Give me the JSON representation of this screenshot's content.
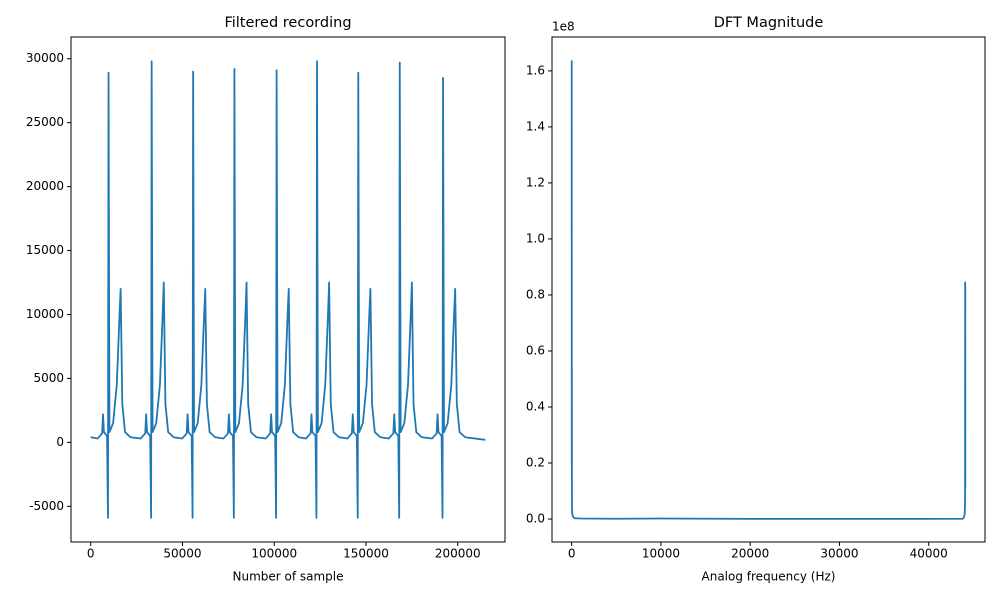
{
  "chart_data": [
    {
      "type": "line",
      "title": "Filtered recording",
      "xlabel": "Number of sample",
      "xlim": [
        -10750,
        225750
      ],
      "ylim": [
        -7790,
        31700
      ],
      "xticks": [
        0,
        50000,
        100000,
        150000,
        200000
      ],
      "yticks": [
        -5000,
        0,
        5000,
        10000,
        15000,
        20000,
        25000,
        30000
      ],
      "series": [
        {
          "color": "#1f77b4",
          "x": [
            0,
            3700,
            6200,
            6700,
            7200,
            8900,
            9400,
            9700,
            10200,
            12200,
            14200,
            15700,
            16300,
            17200,
            18700,
            21700,
            27200,
            29700,
            30200,
            30700,
            32400,
            32900,
            33200,
            33700,
            35700,
            37700,
            39200,
            39800,
            40700,
            42200,
            45200,
            49800,
            52300,
            52800,
            53300,
            55000,
            55500,
            55800,
            56300,
            58300,
            60300,
            61800,
            62400,
            63300,
            64800,
            67800,
            72300,
            74800,
            75300,
            75800,
            77500,
            78000,
            78300,
            78800,
            80800,
            82800,
            84300,
            84900,
            85800,
            87300,
            90300,
            95300,
            97800,
            98300,
            98800,
            100500,
            101000,
            101300,
            101800,
            103800,
            105800,
            107300,
            107900,
            108800,
            110300,
            113300,
            117300,
            119800,
            120300,
            120800,
            122500,
            123000,
            123300,
            123800,
            125800,
            127800,
            129300,
            129900,
            130800,
            132300,
            135300,
            139800,
            142300,
            142800,
            143300,
            145000,
            145500,
            145800,
            146300,
            148300,
            150300,
            151800,
            152400,
            153300,
            154800,
            157800,
            162400,
            164900,
            165400,
            165900,
            167600,
            168100,
            168400,
            168900,
            170900,
            172900,
            174400,
            175000,
            175900,
            177400,
            180400,
            186000,
            188500,
            189000,
            189500,
            191200,
            191700,
            192000,
            192500,
            194500,
            196500,
            198000,
            198600,
            199500,
            201000,
            204000,
            215000
          ],
          "values": [
            400,
            300,
            700,
            2200,
            800,
            500,
            -5900,
            28900,
            800,
            1500,
            4500,
            10000,
            12000,
            3000,
            800,
            400,
            300,
            700,
            2200,
            800,
            500,
            -5900,
            29800,
            800,
            1500,
            4500,
            10000,
            12500,
            3000,
            800,
            400,
            300,
            700,
            2200,
            800,
            500,
            -5900,
            29000,
            800,
            1500,
            4500,
            10000,
            12000,
            3000,
            800,
            400,
            300,
            700,
            2200,
            800,
            500,
            -5900,
            29200,
            800,
            1500,
            4500,
            10000,
            12500,
            3000,
            800,
            400,
            300,
            700,
            2200,
            800,
            500,
            -5900,
            29100,
            800,
            1500,
            4500,
            10000,
            12000,
            3000,
            800,
            400,
            300,
            700,
            2200,
            800,
            500,
            -5900,
            29800,
            800,
            1500,
            4500,
            10000,
            12500,
            3000,
            800,
            400,
            300,
            700,
            2200,
            800,
            500,
            -5900,
            28900,
            800,
            1500,
            4500,
            10000,
            12000,
            3000,
            800,
            400,
            300,
            700,
            2200,
            800,
            500,
            -5900,
            29700,
            800,
            1500,
            4500,
            10000,
            12500,
            3000,
            800,
            400,
            300,
            700,
            2200,
            800,
            500,
            -5900,
            28500,
            800,
            1500,
            4500,
            10000,
            12000,
            3000,
            800,
            400,
            200
          ]
        }
      ]
    },
    {
      "type": "line",
      "title": "DFT Magnitude",
      "xlabel": "Analog frequency (Hz)",
      "y_offset_label": "1e8",
      "xlim": [
        -2205,
        46305
      ],
      "ylim": [
        -8200000,
        172100000
      ],
      "xticks": [
        0,
        10000,
        20000,
        30000,
        40000
      ],
      "yticks": [
        {
          "value": 0,
          "label": "0.0"
        },
        {
          "value": 20000000,
          "label": "0.2"
        },
        {
          "value": 40000000,
          "label": "0.4"
        },
        {
          "value": 60000000,
          "label": "0.6"
        },
        {
          "value": 80000000,
          "label": "0.8"
        },
        {
          "value": 100000000,
          "label": "1.0"
        },
        {
          "value": 120000000,
          "label": "1.2"
        },
        {
          "value": 140000000,
          "label": "1.4"
        },
        {
          "value": 160000000,
          "label": "1.6"
        }
      ],
      "series": [
        {
          "color": "#1f77b4",
          "x": [
            0,
            5,
            10,
            15,
            30,
            60,
            120,
            300,
            1000,
            5000,
            10000,
            20000,
            30000,
            40000,
            43800,
            43950,
            44040,
            44070,
            44085,
            44095,
            44100
          ],
          "values": [
            100000000,
            163500000,
            20000000,
            53500000,
            5000000,
            2000000,
            1000000,
            300000,
            200000,
            100000,
            200000,
            50000,
            50000,
            50000,
            100000,
            600000,
            2000000,
            6500000,
            84500000,
            82000000,
            11000000
          ]
        }
      ]
    }
  ]
}
